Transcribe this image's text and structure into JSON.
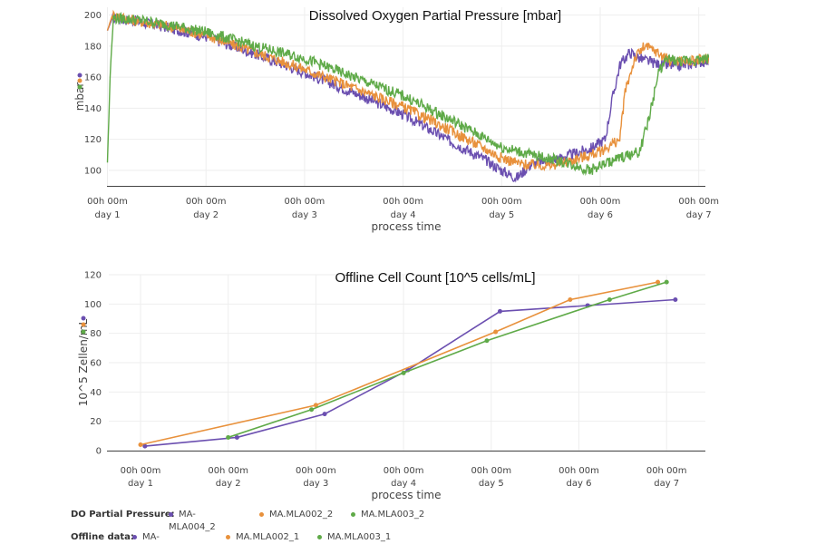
{
  "colors": {
    "s1": "#6b4fb0",
    "s2": "#e8913c",
    "s3": "#5faa48"
  },
  "chart_data": [
    {
      "type": "line",
      "title": "Dissolved Oxygen Partial Pressure [mbar]",
      "xlabel": "process time",
      "ylabel": "mbar",
      "xlim": [
        1,
        7.1
      ],
      "ylim": [
        90,
        205
      ],
      "yticks": [
        "100",
        "120",
        "140",
        "160",
        "180",
        "200"
      ],
      "xticks": [
        {
          "top": "00h 00m",
          "bottom": "day 1"
        },
        {
          "top": "00h 00m",
          "bottom": "day 2"
        },
        {
          "top": "00h 00m",
          "bottom": "day 3"
        },
        {
          "top": "00h 00m",
          "bottom": "day 4"
        },
        {
          "top": "00h 00m",
          "bottom": "day 5"
        },
        {
          "top": "00h 00m",
          "bottom": "day 6"
        },
        {
          "top": "00h 00m",
          "bottom": "day 7"
        }
      ],
      "series": [
        {
          "color_key": "s1",
          "x": [
            1,
            1.05,
            1.3,
            1.6,
            2,
            2.5,
            3,
            3.5,
            4,
            4.5,
            4.8,
            5,
            5.15,
            5.3,
            5.6,
            5.9,
            6.05,
            6.12,
            6.2,
            6.3,
            6.4,
            6.6,
            6.8,
            7.1
          ],
          "y": [
            190,
            198,
            196,
            192,
            186,
            175,
            163,
            150,
            136,
            118,
            108,
            100,
            95,
            104,
            108,
            114,
            120,
            145,
            168,
            176,
            172,
            168,
            167,
            171
          ]
        },
        {
          "color_key": "s2",
          "x": [
            1,
            1.05,
            1.3,
            1.6,
            2,
            2.5,
            3,
            3.5,
            4,
            4.5,
            4.8,
            5,
            5.2,
            5.5,
            5.8,
            6,
            6.2,
            6.25,
            6.35,
            6.45,
            6.55,
            6.7,
            6.9,
            7.1
          ],
          "y": [
            190,
            200,
            196,
            193,
            187,
            176,
            165,
            153,
            141,
            125,
            115,
            108,
            104,
            103,
            108,
            112,
            120,
            150,
            172,
            180,
            177,
            171,
            170,
            172
          ]
        },
        {
          "color_key": "s3",
          "x": [
            1,
            1.03,
            1.06,
            1.3,
            1.6,
            2,
            2.5,
            3,
            3.5,
            4,
            4.5,
            5,
            5.3,
            5.6,
            5.9,
            6,
            6.2,
            6.4,
            6.5,
            6.6,
            6.7,
            6.8,
            7.1
          ],
          "y": [
            105,
            165,
            198,
            197,
            194,
            189,
            180,
            172,
            160,
            148,
            132,
            115,
            110,
            106,
            100,
            103,
            108,
            112,
            135,
            165,
            172,
            170,
            172
          ]
        }
      ]
    },
    {
      "type": "line",
      "title": "Offline Cell Count [10^5 cells/mL]",
      "xlabel": "process time",
      "ylabel": "10^5 Zellen/mL",
      "xlim": [
        1,
        7.4
      ],
      "ylim": [
        0,
        120
      ],
      "yticks": [
        "0",
        "20",
        "40",
        "60",
        "80",
        "100",
        "120"
      ],
      "xticks": [
        {
          "top": "00h 00m",
          "bottom": "day 1"
        },
        {
          "top": "00h 00m",
          "bottom": "day 2"
        },
        {
          "top": "00h 00m",
          "bottom": "day 3"
        },
        {
          "top": "00h 00m",
          "bottom": "day 4"
        },
        {
          "top": "00h 00m",
          "bottom": "day 5"
        },
        {
          "top": "00h 00m",
          "bottom": "day 6"
        },
        {
          "top": "00h 00m",
          "bottom": "day 7"
        }
      ],
      "series": [
        {
          "color_key": "s1",
          "x": [
            1.05,
            2.1,
            3.1,
            4.05,
            5.1,
            6.1,
            7.1
          ],
          "y": [
            3,
            9,
            25,
            55,
            95,
            99,
            103
          ]
        },
        {
          "color_key": "s2",
          "x": [
            1,
            3,
            5.05,
            5.9,
            6.9
          ],
          "y": [
            4,
            31,
            81,
            103,
            115
          ]
        },
        {
          "color_key": "s3",
          "x": [
            2,
            2.95,
            4,
            4.95,
            6.35,
            7
          ],
          "y": [
            9,
            28,
            53,
            75,
            103,
            115
          ]
        }
      ]
    }
  ],
  "legend": {
    "do_label": "DO Partial Pressure:",
    "offline_label": "Offline data:",
    "do_items": [
      {
        "line1": "MA-",
        "line2": "MLA004_2",
        "color_key": "s1"
      },
      {
        "line1": "MA.MLA002_2",
        "line2": "",
        "color_key": "s2"
      },
      {
        "line1": "MA.MLA003_2",
        "line2": "",
        "color_key": "s3"
      }
    ],
    "offline_items": [
      {
        "line1": "MA-",
        "line2": "",
        "color_key": "s1"
      },
      {
        "line1": "MA.MLA002_1",
        "line2": "",
        "color_key": "s2"
      },
      {
        "line1": "MA.MLA003_1",
        "line2": "",
        "color_key": "s3"
      }
    ]
  }
}
